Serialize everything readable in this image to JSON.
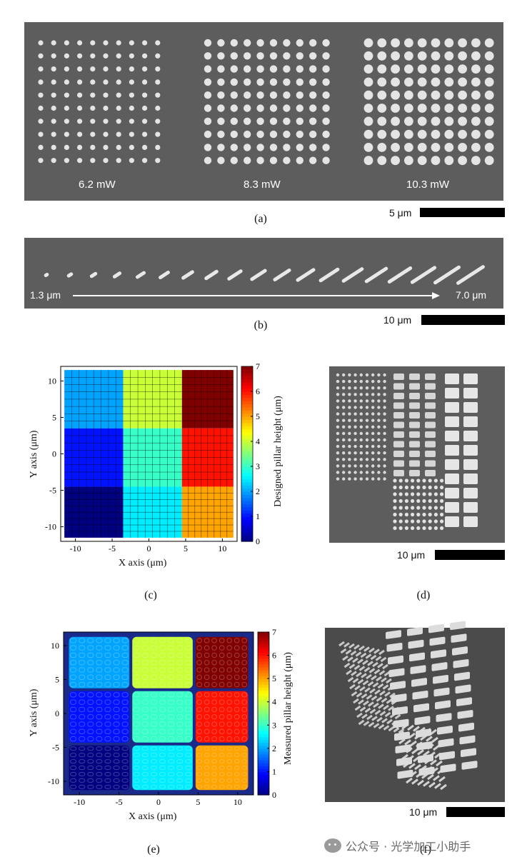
{
  "panel_a": {
    "caption": "(a)",
    "labels": [
      "6.2 mW",
      "8.3 mW",
      "10.3 mW"
    ],
    "scale": "5 μm"
  },
  "panel_b": {
    "caption": "(b)",
    "start_label": "1.3 μm",
    "end_label": "7.0 μm",
    "scale": "10 μm"
  },
  "panel_c": {
    "caption": "(c)",
    "xlabel": "X axis (μm)",
    "ylabel": "Y axis (μm)",
    "colorbar_label": "Designed pillar height (μm)",
    "xticks": [
      "-10",
      "-5",
      "0",
      "5",
      "10"
    ],
    "yticks": [
      "10",
      "5",
      "0",
      "-5",
      "-10"
    ],
    "cbticks": [
      "7",
      "6",
      "5",
      "4",
      "3",
      "2",
      "1",
      "0"
    ]
  },
  "panel_d": {
    "caption": "(d)",
    "scale": "10 μm"
  },
  "panel_e": {
    "caption": "(e)",
    "xlabel": "X axis (μm)",
    "ylabel": "Y axis (μm)",
    "colorbar_label": "Measured pillar height (μm)",
    "xticks": [
      "-10",
      "-5",
      "0",
      "5",
      "10"
    ],
    "yticks": [
      "10",
      "5",
      "0",
      "-5",
      "-10"
    ],
    "cbticks": [
      "7",
      "6",
      "5",
      "4",
      "3",
      "2",
      "1",
      "0"
    ]
  },
  "panel_f": {
    "caption": "(f)",
    "scale": "10 μm"
  },
  "watermark": "公众号 · 光学加工小助手",
  "chart_data": [
    {
      "type": "heatmap",
      "xlabel": "X axis (μm)",
      "ylabel": "Y axis (μm)",
      "xlim": [
        -12,
        12
      ],
      "ylim": [
        -12,
        12
      ],
      "colorbar": "Designed pillar height (μm)",
      "clim": [
        0,
        7
      ],
      "rows": [
        "top",
        "middle",
        "bottom"
      ],
      "cols": [
        "left",
        "center",
        "right"
      ],
      "values": [
        [
          2,
          4,
          7
        ],
        [
          1,
          3,
          6
        ],
        [
          0,
          2.5,
          5
        ]
      ]
    },
    {
      "type": "heatmap",
      "xlabel": "X axis (μm)",
      "ylabel": "Y axis (μm)",
      "xlim": [
        -12,
        12
      ],
      "ylim": [
        -12,
        12
      ],
      "colorbar": "Measured pillar height (μm)",
      "clim": [
        0,
        7
      ],
      "rows": [
        "top",
        "middle",
        "bottom"
      ],
      "cols": [
        "left",
        "center",
        "right"
      ],
      "values": [
        [
          2,
          4,
          7
        ],
        [
          1,
          3,
          6
        ],
        [
          0,
          2.5,
          5
        ]
      ]
    }
  ],
  "colors": {
    "sem_bg": "#5d5d5d",
    "scalebar": "#000000"
  }
}
